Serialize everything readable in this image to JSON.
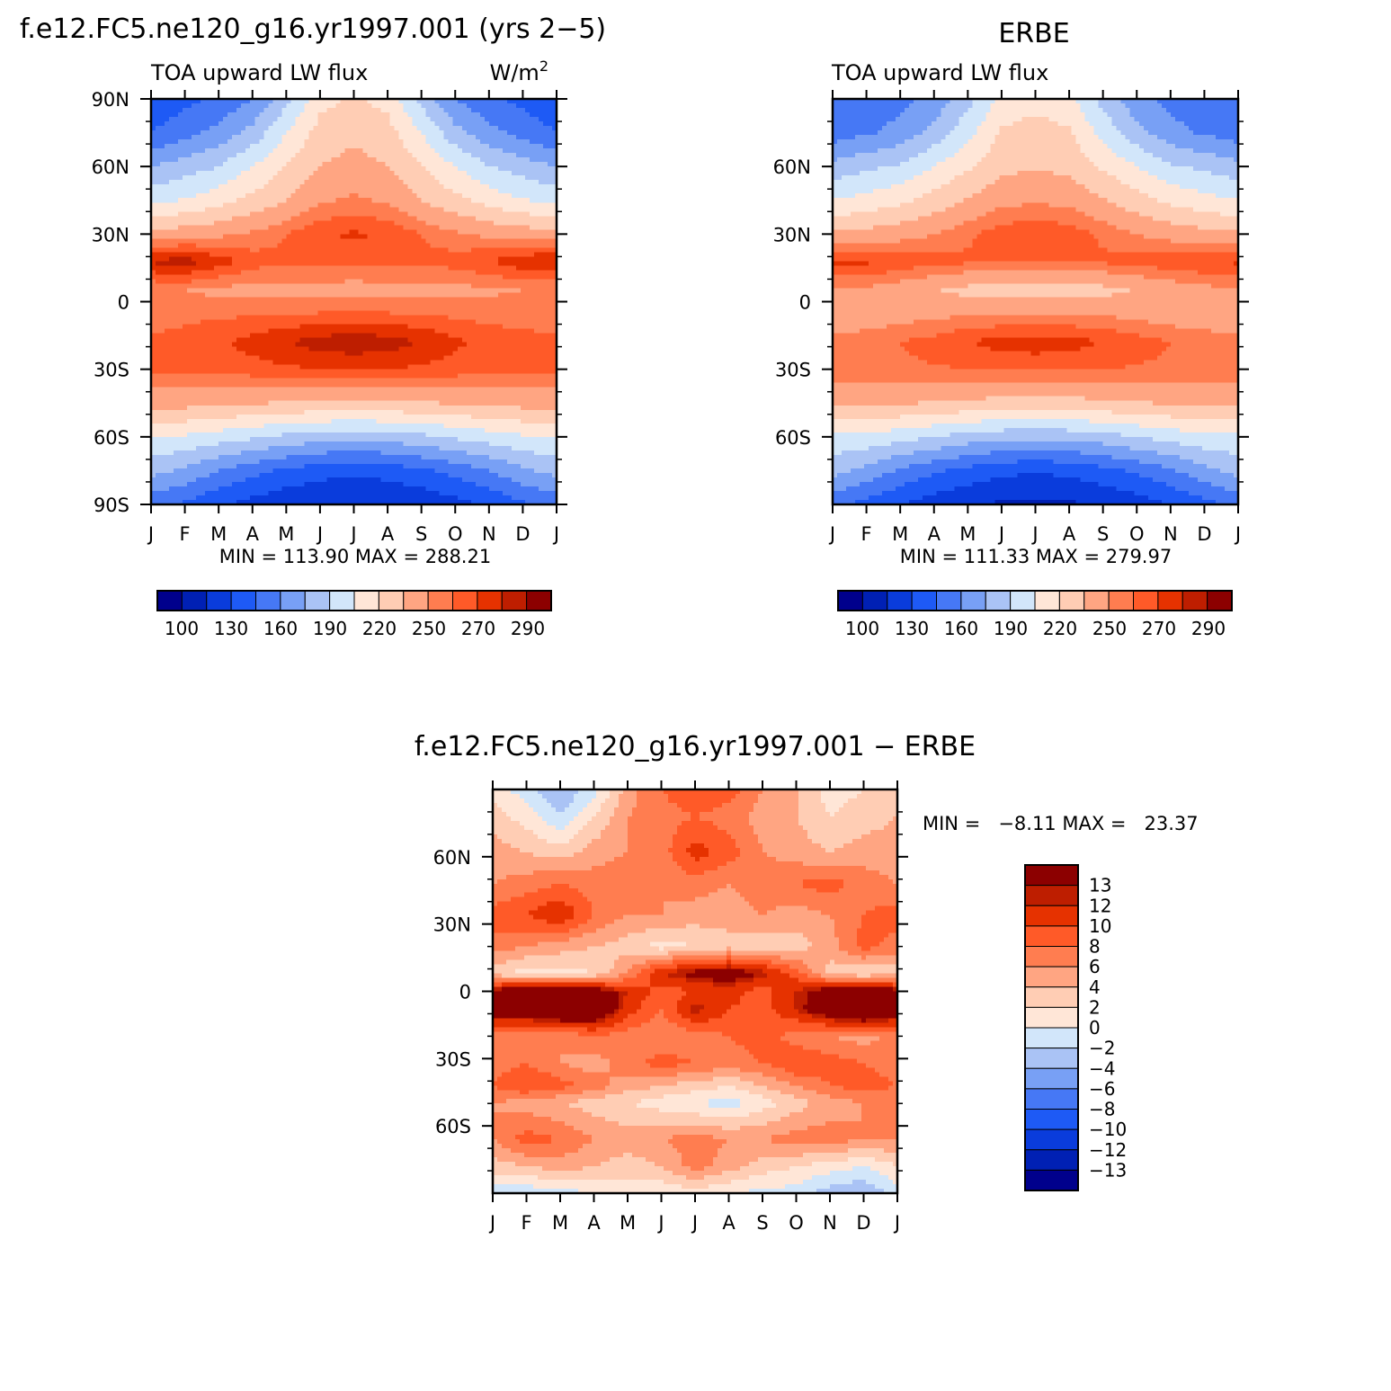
{
  "palette": {
    "blues": [
      "#00008c",
      "#0020b4",
      "#0a3cdc",
      "#1e5af5",
      "#4678f5",
      "#78a0f5",
      "#aac3f5",
      "#d2e6fa"
    ],
    "reds": [
      "#ffe6d7",
      "#ffcdb4",
      "#ffa582",
      "#ff7d50",
      "#ff5a28",
      "#e63200",
      "#be1e00",
      "#8c0000"
    ]
  },
  "chart_data": [
    {
      "type": "heatmap",
      "id": "model",
      "title": "f.e12.FC5.ne120_g16.yr1997.001 (yrs 2−5)",
      "left_subtitle": "TOA upward LW flux",
      "right_subtitle": "W/m",
      "right_subtitle_sup": "2",
      "x_ticks": [
        "J",
        "F",
        "M",
        "A",
        "M",
        "J",
        "J",
        "A",
        "S",
        "O",
        "N",
        "D",
        "J"
      ],
      "y_ticks": [
        {
          "lat": 90,
          "label": "90N"
        },
        {
          "lat": 60,
          "label": "60N"
        },
        {
          "lat": 30,
          "label": "30N"
        },
        {
          "lat": 0,
          "label": "0"
        },
        {
          "lat": -30,
          "label": "30S"
        },
        {
          "lat": -60,
          "label": "60S"
        },
        {
          "lat": -90,
          "label": "90S"
        }
      ],
      "ylim": [
        -90,
        90
      ],
      "stats": "MIN = 113.90 MAX = 288.21",
      "colorbar": {
        "orientation": "horizontal",
        "labels": [
          "100",
          "130",
          "160",
          "190",
          "220",
          "250",
          "270",
          "290"
        ],
        "n_colors": 16
      },
      "rows": [
        {
          "lat": 90,
          "values": [
            130,
            140,
            148,
            160,
            185,
            215,
            222,
            215,
            185,
            160,
            148,
            140,
            130
          ]
        },
        {
          "lat": 75,
          "values": [
            145,
            155,
            165,
            180,
            205,
            226,
            232,
            226,
            205,
            180,
            165,
            155,
            145
          ]
        },
        {
          "lat": 60,
          "values": [
            175,
            182,
            190,
            205,
            220,
            235,
            240,
            235,
            220,
            205,
            190,
            182,
            175
          ]
        },
        {
          "lat": 45,
          "values": [
            200,
            206,
            214,
            224,
            235,
            248,
            252,
            248,
            235,
            224,
            214,
            206,
            200
          ]
        },
        {
          "lat": 30,
          "values": [
            240,
            243,
            247,
            252,
            260,
            268,
            272,
            268,
            260,
            252,
            247,
            243,
            240
          ]
        },
        {
          "lat": 18,
          "values": [
            282,
            285,
            276,
            265,
            262,
            263,
            263,
            263,
            262,
            265,
            270,
            278,
            282
          ]
        },
        {
          "lat": 5,
          "values": [
            250,
            250,
            247,
            245,
            245,
            245,
            244,
            245,
            245,
            246,
            248,
            250,
            250
          ]
        },
        {
          "lat": -5,
          "values": [
            255,
            257,
            258,
            258,
            259,
            260,
            260,
            260,
            259,
            257,
            256,
            256,
            255
          ]
        },
        {
          "lat": -18,
          "values": [
            262,
            264,
            268,
            274,
            280,
            285,
            288,
            285,
            280,
            272,
            266,
            263,
            262
          ]
        },
        {
          "lat": -30,
          "values": [
            264,
            264,
            265,
            266,
            268,
            270,
            270,
            270,
            268,
            266,
            265,
            264,
            264
          ]
        },
        {
          "lat": -45,
          "values": [
            240,
            240,
            238,
            236,
            234,
            232,
            232,
            232,
            234,
            236,
            238,
            240,
            240
          ]
        },
        {
          "lat": -60,
          "values": [
            205,
            203,
            198,
            192,
            186,
            182,
            180,
            182,
            186,
            192,
            198,
            203,
            205
          ]
        },
        {
          "lat": -75,
          "values": [
            180,
            172,
            160,
            150,
            142,
            136,
            133,
            136,
            142,
            150,
            160,
            172,
            180
          ]
        },
        {
          "lat": -90,
          "values": [
            150,
            142,
            132,
            124,
            118,
            115,
            114,
            115,
            118,
            124,
            132,
            142,
            150
          ]
        }
      ]
    },
    {
      "type": "heatmap",
      "id": "obs",
      "title": "ERBE",
      "left_subtitle": "TOA upward LW flux",
      "x_ticks": [
        "J",
        "F",
        "M",
        "A",
        "M",
        "J",
        "J",
        "A",
        "S",
        "O",
        "N",
        "D",
        "J"
      ],
      "y_ticks": [
        {
          "lat": 60,
          "label": "60N"
        },
        {
          "lat": 30,
          "label": "30N"
        },
        {
          "lat": 0,
          "label": "0"
        },
        {
          "lat": -30,
          "label": "30S"
        },
        {
          "lat": -60,
          "label": "60S"
        }
      ],
      "ylim": [
        -90,
        90
      ],
      "stats": "MIN = 111.33 MAX = 279.97",
      "colorbar": {
        "orientation": "horizontal",
        "labels": [
          "100",
          "130",
          "160",
          "190",
          "220",
          "250",
          "270",
          "290"
        ],
        "n_colors": 16
      },
      "rows": [
        {
          "lat": 90,
          "values": [
            150,
            152,
            155,
            165,
            185,
            210,
            215,
            210,
            185,
            165,
            155,
            152,
            150
          ]
        },
        {
          "lat": 75,
          "values": [
            152,
            158,
            165,
            180,
            200,
            222,
            226,
            222,
            200,
            180,
            165,
            158,
            152
          ]
        },
        {
          "lat": 60,
          "values": [
            180,
            186,
            192,
            205,
            218,
            230,
            234,
            230,
            218,
            205,
            192,
            186,
            180
          ]
        },
        {
          "lat": 45,
          "values": [
            205,
            210,
            216,
            226,
            236,
            246,
            248,
            246,
            236,
            226,
            216,
            210,
            205
          ]
        },
        {
          "lat": 30,
          "values": [
            238,
            240,
            244,
            250,
            258,
            266,
            268,
            266,
            258,
            250,
            244,
            240,
            238
          ]
        },
        {
          "lat": 18,
          "values": [
            272,
            272,
            268,
            264,
            262,
            262,
            262,
            262,
            262,
            264,
            267,
            270,
            272
          ]
        },
        {
          "lat": 5,
          "values": [
            248,
            247,
            242,
            236,
            230,
            226,
            225,
            226,
            230,
            236,
            242,
            246,
            248
          ]
        },
        {
          "lat": -5,
          "values": [
            238,
            240,
            244,
            246,
            248,
            249,
            250,
            249,
            248,
            245,
            242,
            240,
            238
          ]
        },
        {
          "lat": -18,
          "values": [
            255,
            257,
            260,
            264,
            270,
            274,
            276,
            274,
            270,
            265,
            260,
            257,
            255
          ]
        },
        {
          "lat": -30,
          "values": [
            258,
            258,
            258,
            259,
            260,
            262,
            262,
            262,
            260,
            259,
            258,
            258,
            258
          ]
        },
        {
          "lat": -45,
          "values": [
            238,
            238,
            236,
            234,
            232,
            230,
            230,
            230,
            232,
            234,
            236,
            238,
            238
          ]
        },
        {
          "lat": -60,
          "values": [
            202,
            200,
            196,
            190,
            184,
            180,
            178,
            180,
            184,
            190,
            196,
            200,
            202
          ]
        },
        {
          "lat": -75,
          "values": [
            180,
            170,
            158,
            148,
            140,
            134,
            131,
            134,
            140,
            148,
            158,
            170,
            180
          ]
        },
        {
          "lat": -90,
          "values": [
            150,
            140,
            130,
            122,
            116,
            113,
            112,
            113,
            116,
            122,
            130,
            140,
            150
          ]
        }
      ]
    },
    {
      "type": "heatmap",
      "id": "diff",
      "title": "f.e12.FC5.ne120_g16.yr1997.001 − ERBE",
      "x_ticks": [
        "J",
        "F",
        "M",
        "A",
        "M",
        "J",
        "J",
        "A",
        "S",
        "O",
        "N",
        "D",
        "J"
      ],
      "y_ticks": [
        {
          "lat": 60,
          "label": "60N"
        },
        {
          "lat": 30,
          "label": "30N"
        },
        {
          "lat": 0,
          "label": "0"
        },
        {
          "lat": -30,
          "label": "30S"
        },
        {
          "lat": -60,
          "label": "60S"
        }
      ],
      "ylim": [
        -90,
        90
      ],
      "stats": "MIN =   −8.11 MAX =   23.37",
      "colorbar": {
        "orientation": "vertical",
        "labels": [
          "13",
          "12",
          "10",
          "8",
          "6",
          "4",
          "2",
          "0",
          "−2",
          "−4",
          "−6",
          "−8",
          "−10",
          "−12",
          "−13"
        ],
        "n_colors": 16
      },
      "rows": [
        {
          "lat": 90,
          "values": [
            1.0,
            -1.0,
            -4.0,
            -1.0,
            5.0,
            8.0,
            10.0,
            9.0,
            6.0,
            4.0,
            1.0,
            2.0,
            3.0
          ]
        },
        {
          "lat": 78,
          "values": [
            3.0,
            1.0,
            -2.0,
            2.0,
            6.0,
            7.0,
            8.0,
            7.0,
            5.0,
            4.0,
            2.0,
            3.0,
            4.0
          ]
        },
        {
          "lat": 62,
          "values": [
            5.0,
            4.0,
            3.0,
            5.0,
            6.0,
            7.0,
            11.0,
            9.0,
            6.0,
            5.0,
            4.0,
            5.0,
            5.0
          ]
        },
        {
          "lat": 48,
          "values": [
            6.0,
            7.0,
            8.0,
            7.0,
            8.0,
            6.0,
            7.0,
            6.0,
            7.0,
            8.0,
            9.0,
            7.0,
            6.0
          ]
        },
        {
          "lat": 34,
          "values": [
            9.0,
            10.0,
            12.0,
            8.0,
            6.0,
            6.0,
            5.0,
            5.0,
            6.0,
            5.0,
            6.0,
            8.0,
            9.0
          ]
        },
        {
          "lat": 20,
          "values": [
            7.0,
            6.0,
            5.0,
            4.0,
            3.0,
            1.0,
            2.0,
            3.0,
            2.0,
            3.0,
            5.0,
            9.0,
            7.0
          ]
        },
        {
          "lat": 8,
          "values": [
            3.0,
            1.0,
            1.0,
            2.0,
            6.0,
            12.0,
            14.0,
            15.0,
            13.0,
            9.0,
            3.0,
            2.0,
            3.0
          ]
        },
        {
          "lat": 0,
          "values": [
            14.0,
            16.0,
            17.0,
            15.0,
            12.0,
            9.0,
            10.0,
            11.0,
            9.0,
            12.0,
            15.0,
            17.0,
            14.0
          ]
        },
        {
          "lat": -8,
          "values": [
            15.0,
            16.0,
            18.0,
            17.0,
            11.0,
            8.0,
            13.0,
            10.0,
            9.0,
            12.0,
            16.0,
            19.0,
            15.0
          ]
        },
        {
          "lat": -20,
          "values": [
            7.0,
            6.0,
            6.0,
            8.0,
            7.0,
            6.0,
            7.0,
            8.0,
            9.0,
            7.0,
            6.0,
            5.0,
            7.0
          ]
        },
        {
          "lat": -32,
          "values": [
            7.0,
            8.0,
            6.0,
            5.0,
            7.0,
            9.0,
            8.0,
            7.0,
            8.0,
            10.0,
            9.0,
            8.0,
            7.0
          ]
        },
        {
          "lat": -42,
          "values": [
            8.0,
            10.0,
            9.0,
            7.0,
            5.0,
            4.0,
            3.0,
            2.0,
            4.0,
            6.0,
            8.0,
            9.0,
            8.0
          ]
        },
        {
          "lat": -50,
          "values": [
            6.0,
            5.0,
            4.0,
            3.0,
            2.0,
            1.0,
            0.0,
            -1.0,
            1.0,
            3.0,
            5.0,
            6.0,
            6.0
          ]
        },
        {
          "lat": -66,
          "values": [
            6.0,
            9.0,
            8.0,
            6.0,
            5.0,
            6.0,
            7.0,
            6.0,
            6.0,
            7.0,
            7.0,
            6.0,
            6.0
          ]
        },
        {
          "lat": -78,
          "values": [
            3.0,
            4.0,
            5.0,
            4.0,
            3.0,
            4.0,
            7.0,
            5.0,
            3.0,
            2.0,
            1.0,
            0.0,
            2.0
          ]
        },
        {
          "lat": -90,
          "values": [
            -1.0,
            -1.5,
            -1.0,
            0.0,
            1.0,
            0.5,
            1.0,
            0.0,
            -0.5,
            -1.0,
            -3.0,
            -4.0,
            -1.0
          ]
        }
      ]
    }
  ]
}
